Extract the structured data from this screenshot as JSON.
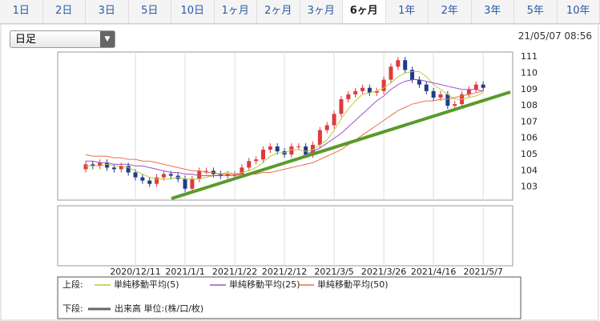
{
  "tabs": [
    "1日",
    "2日",
    "3日",
    "5日",
    "10日",
    "1ヶ月",
    "2ヶ月",
    "3ヶ月",
    "6ヶ月",
    "1年",
    "2年",
    "3年",
    "5年",
    "10年"
  ],
  "active_tab": "6ヶ月",
  "dropdown": "日足",
  "timestamp": "21/05/07 08:56",
  "chart_data": {
    "type": "candlestick",
    "categories": [
      null,
      null,
      null,
      null,
      null,
      null,
      null,
      "2020/12/11",
      null,
      null,
      null,
      null,
      null,
      null,
      "2021/1/1",
      null,
      null,
      null,
      null,
      null,
      null,
      "2021/1/22",
      null,
      null,
      null,
      null,
      null,
      null,
      "2021/2/12",
      null,
      null,
      null,
      null,
      null,
      null,
      "2021/3/5",
      null,
      null,
      null,
      null,
      null,
      null,
      "2021/3/26",
      null,
      null,
      null,
      null,
      null,
      null,
      "2021/4/16",
      null,
      null,
      null,
      null,
      null,
      null,
      "2021/5/7"
    ],
    "open": [
      104.1,
      104.4,
      104.3,
      104.5,
      104.2,
      104.1,
      104.3,
      103.9,
      103.6,
      103.4,
      103.2,
      103.6,
      103.8,
      103.7,
      103.5,
      102.9,
      103.5,
      104.0,
      104.0,
      103.8,
      103.7,
      103.8,
      103.8,
      104.2,
      104.6,
      104.7,
      105.3,
      105.5,
      105.2,
      105.0,
      105.5,
      105.5,
      105.0,
      105.6,
      106.5,
      106.8,
      107.5,
      108.4,
      108.7,
      108.9,
      109.1,
      108.8,
      108.9,
      109.6,
      110.4,
      110.8,
      110.2,
      109.6,
      109.3,
      108.9,
      108.5,
      108.7,
      108.0,
      108.1,
      108.7,
      109.0,
      109.3
    ],
    "high": [
      104.6,
      104.6,
      104.7,
      104.7,
      104.4,
      104.5,
      104.5,
      104.1,
      103.8,
      103.6,
      103.8,
      104.0,
      104.0,
      103.9,
      103.7,
      103.7,
      104.2,
      104.2,
      104.2,
      104.0,
      104.0,
      104.0,
      104.4,
      104.8,
      104.9,
      105.5,
      105.7,
      105.7,
      105.4,
      105.7,
      105.7,
      105.7,
      105.8,
      106.7,
      107.0,
      107.7,
      108.6,
      108.9,
      109.1,
      109.3,
      109.3,
      109.1,
      109.8,
      110.6,
      111.0,
      111.0,
      110.4,
      109.8,
      109.5,
      109.1,
      108.9,
      108.9,
      108.3,
      108.9,
      109.2,
      109.5,
      109.5
    ],
    "low": [
      103.9,
      104.1,
      104.1,
      104.0,
      103.9,
      103.9,
      103.7,
      103.4,
      103.2,
      103.0,
      103.0,
      103.4,
      103.5,
      103.3,
      102.7,
      102.7,
      103.3,
      103.8,
      103.6,
      103.5,
      103.5,
      103.6,
      103.6,
      104.0,
      104.4,
      104.5,
      105.1,
      105.0,
      104.8,
      104.8,
      105.3,
      104.8,
      104.8,
      105.4,
      106.3,
      106.6,
      107.3,
      108.2,
      108.5,
      108.7,
      108.6,
      108.6,
      108.7,
      109.4,
      110.2,
      110.0,
      109.4,
      109.1,
      108.7,
      108.3,
      108.3,
      107.8,
      107.8,
      107.9,
      108.5,
      108.8,
      108.9
    ],
    "close": [
      104.4,
      104.3,
      104.5,
      104.2,
      104.1,
      104.3,
      103.9,
      103.6,
      103.4,
      103.2,
      103.6,
      103.8,
      103.7,
      103.5,
      102.9,
      103.5,
      104.0,
      104.0,
      103.8,
      103.7,
      103.8,
      103.8,
      104.2,
      104.6,
      104.7,
      105.3,
      105.5,
      105.2,
      105.0,
      105.5,
      105.5,
      105.0,
      105.6,
      106.5,
      106.8,
      107.5,
      108.4,
      108.7,
      108.9,
      109.1,
      108.8,
      108.9,
      109.6,
      110.4,
      110.8,
      110.2,
      109.6,
      109.3,
      108.9,
      108.5,
      108.7,
      108.0,
      108.1,
      108.7,
      109.0,
      109.3,
      109.1
    ],
    "up_color": "#e03a3e",
    "down_color": "#1e3c8c",
    "series": [
      {
        "name": "単純移動平均(5)",
        "color": "#b8cc3c",
        "values": [
          104.3,
          104.3,
          104.3,
          104.4,
          104.3,
          104.3,
          104.2,
          104.0,
          103.8,
          103.6,
          103.5,
          103.5,
          103.5,
          103.6,
          103.5,
          103.5,
          103.5,
          103.6,
          103.7,
          103.8,
          103.9,
          103.8,
          103.9,
          104.0,
          104.2,
          104.5,
          104.9,
          105.1,
          105.1,
          105.3,
          105.3,
          105.2,
          105.3,
          105.6,
          105.9,
          106.5,
          107.2,
          107.8,
          108.3,
          108.7,
          108.8,
          108.9,
          109.1,
          109.4,
          109.8,
          110.0,
          110.1,
          110.1,
          109.8,
          109.3,
          109.0,
          108.7,
          108.4,
          108.4,
          108.5,
          108.6,
          108.8
        ]
      },
      {
        "name": "単純移動平均(25)",
        "color": "#a050c8",
        "values": [
          104.6,
          104.6,
          104.5,
          104.5,
          104.4,
          104.4,
          104.4,
          104.3,
          104.3,
          104.2,
          104.1,
          104.0,
          103.9,
          103.9,
          103.8,
          103.8,
          103.7,
          103.7,
          103.7,
          103.7,
          103.7,
          103.7,
          103.8,
          103.8,
          103.9,
          104.0,
          104.2,
          104.3,
          104.5,
          104.7,
          104.8,
          105.0,
          105.2,
          105.4,
          105.7,
          106.0,
          106.3,
          106.7,
          107.1,
          107.5,
          107.9,
          108.3,
          108.6,
          109.0,
          109.3,
          109.5,
          109.6,
          109.6,
          109.5,
          109.4,
          109.3,
          109.2,
          109.1,
          109.0,
          109.0,
          109.0,
          108.9
        ]
      },
      {
        "name": "単純移動平均(50)",
        "color": "#e8704a",
        "values": [
          105.0,
          104.9,
          104.9,
          104.9,
          104.8,
          104.8,
          104.7,
          104.7,
          104.6,
          104.6,
          104.5,
          104.4,
          104.3,
          104.2,
          104.1,
          104.0,
          104.0,
          103.9,
          103.9,
          103.8,
          103.8,
          103.8,
          103.8,
          103.8,
          103.8,
          103.9,
          103.9,
          104.0,
          104.1,
          104.2,
          104.3,
          104.4,
          104.5,
          104.7,
          104.9,
          105.1,
          105.3,
          105.6,
          105.9,
          106.2,
          106.5,
          106.8,
          107.1,
          107.4,
          107.7,
          107.9,
          108.1,
          108.2,
          108.3,
          108.3,
          108.4,
          108.4,
          108.5,
          108.6,
          108.7,
          108.8,
          108.9
        ]
      }
    ],
    "ylim": [
      102.2,
      111.3
    ],
    "yticks": [
      103,
      104,
      105,
      106,
      107,
      108,
      109,
      110,
      111
    ],
    "grid": true,
    "legend": {
      "upper": "上段:",
      "lower": "下段:",
      "volume": "出来高 単位:(株/口/枚)",
      "volume_color": "#666666"
    }
  }
}
